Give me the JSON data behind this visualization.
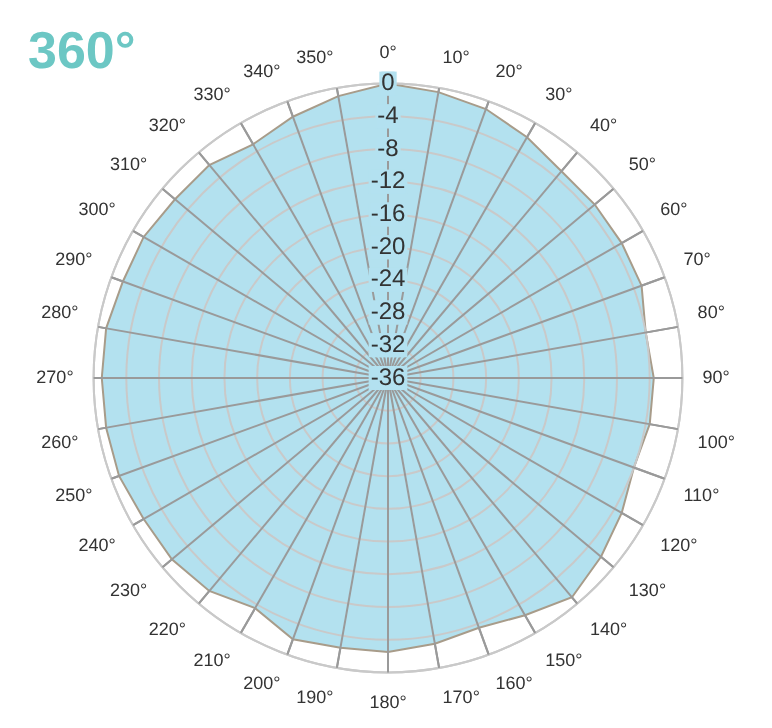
{
  "chart_data": {
    "type": "radar",
    "title": "360°",
    "categories": [
      "0°",
      "10°",
      "20°",
      "30°",
      "40°",
      "50°",
      "60°",
      "70°",
      "80°",
      "90°",
      "100°",
      "110°",
      "120°",
      "130°",
      "140°",
      "150°",
      "160°",
      "170°",
      "180°",
      "190°",
      "200°",
      "210°",
      "220°",
      "230°",
      "240°",
      "250°",
      "260°",
      "270°",
      "280°",
      "290°",
      "300°",
      "310°",
      "320°",
      "330°",
      "340°",
      "350°"
    ],
    "series": [
      {
        "color": "#b3e1ef",
        "values": [
          0,
          -0.5,
          -1,
          -2,
          -3,
          -3,
          -3,
          -3,
          -4,
          -3.5,
          -3.5,
          -4,
          -3,
          -2,
          -1,
          -2.5,
          -3.5,
          -3,
          -2.5,
          -2.5,
          -2,
          -3.5,
          -2,
          -1.5,
          -1.5,
          -1,
          -1,
          -1,
          -1,
          -1.5,
          -1.5,
          -2,
          -2,
          -3,
          -2,
          -1
        ]
      }
    ],
    "ylim": [
      -36,
      0
    ],
    "yticks": [
      -36,
      -32,
      -28,
      -24,
      -20,
      -16,
      -12,
      -8,
      -4,
      0
    ],
    "grid": true,
    "legend": false,
    "marker": "none"
  }
}
